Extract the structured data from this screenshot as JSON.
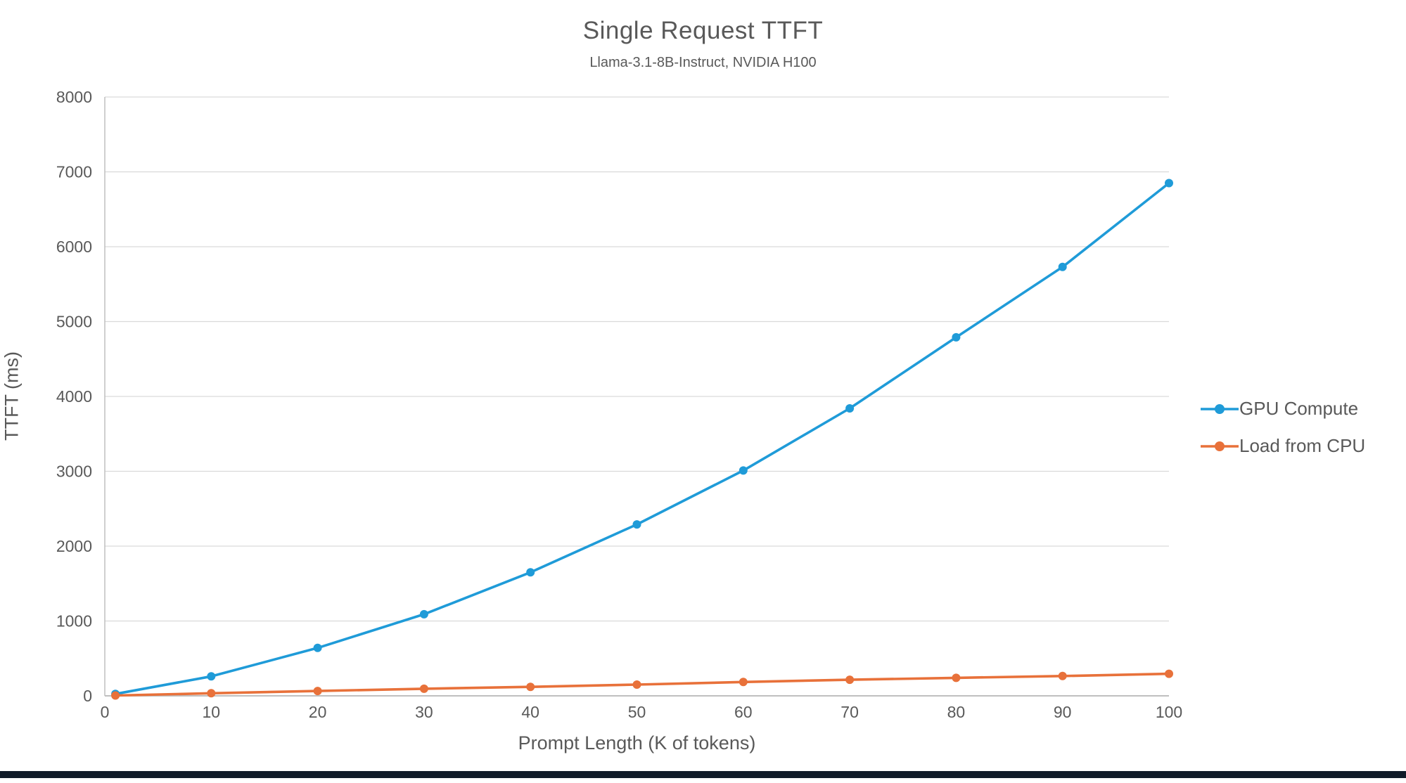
{
  "chart_data": {
    "type": "line",
    "title": "Single Request TTFT",
    "subtitle": "Llama-3.1-8B-Instruct, NVIDIA H100",
    "xlabel": "Prompt Length (K of tokens)",
    "ylabel": "TTFT (ms)",
    "xlim": [
      0,
      100
    ],
    "ylim": [
      0,
      8000
    ],
    "xticks": [
      0,
      10,
      20,
      30,
      40,
      50,
      60,
      70,
      80,
      90,
      100
    ],
    "yticks": [
      0,
      1000,
      2000,
      3000,
      4000,
      5000,
      6000,
      7000,
      8000
    ],
    "grid": "horizontal",
    "legend_position": "right",
    "x": [
      1,
      10,
      20,
      30,
      40,
      50,
      60,
      70,
      80,
      90,
      100
    ],
    "series": [
      {
        "name": "GPU Compute",
        "color": "#1F9BD8",
        "values": [
          25,
          260,
          640,
          1090,
          1650,
          2290,
          3010,
          3840,
          4790,
          5730,
          6850
        ]
      },
      {
        "name": "Load from CPU",
        "color": "#E8713A",
        "values": [
          5,
          35,
          65,
          95,
          120,
          150,
          185,
          215,
          240,
          265,
          295
        ]
      }
    ]
  },
  "colors": {
    "text": "#595959",
    "gridline": "#D9D9D9",
    "axis_line": "#BFBFBF",
    "background": "#FFFFFF",
    "window_edge": "#101B28"
  }
}
